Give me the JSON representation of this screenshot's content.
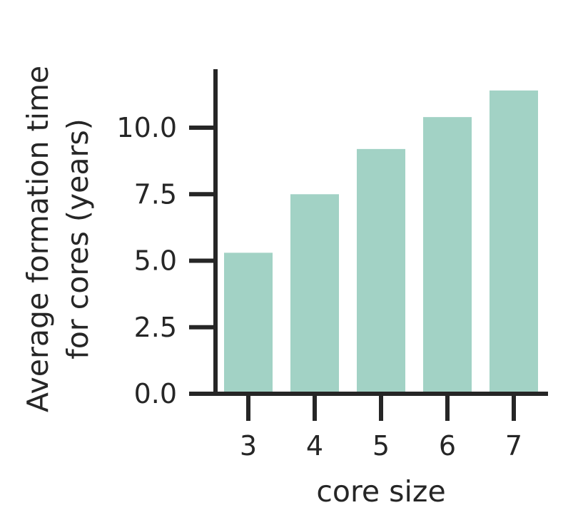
{
  "chart_data": {
    "type": "bar",
    "title": "",
    "xlabel": "core size",
    "ylabel": [
      "Average formation time",
      "for cores (years)"
    ],
    "categories": [
      "3",
      "4",
      "5",
      "6",
      "7"
    ],
    "values": [
      5.3,
      7.5,
      9.2,
      10.4,
      11.4
    ],
    "ylim": [
      0,
      12.2
    ],
    "yticks": [
      0.0,
      2.5,
      5.0,
      7.5,
      10.0
    ],
    "ytick_labels": [
      "0.0",
      "2.5",
      "5.0",
      "7.5",
      "10.0"
    ],
    "bar_color": "#a2d2c5",
    "axis_color": "#262626",
    "grid": false,
    "legend": false
  }
}
